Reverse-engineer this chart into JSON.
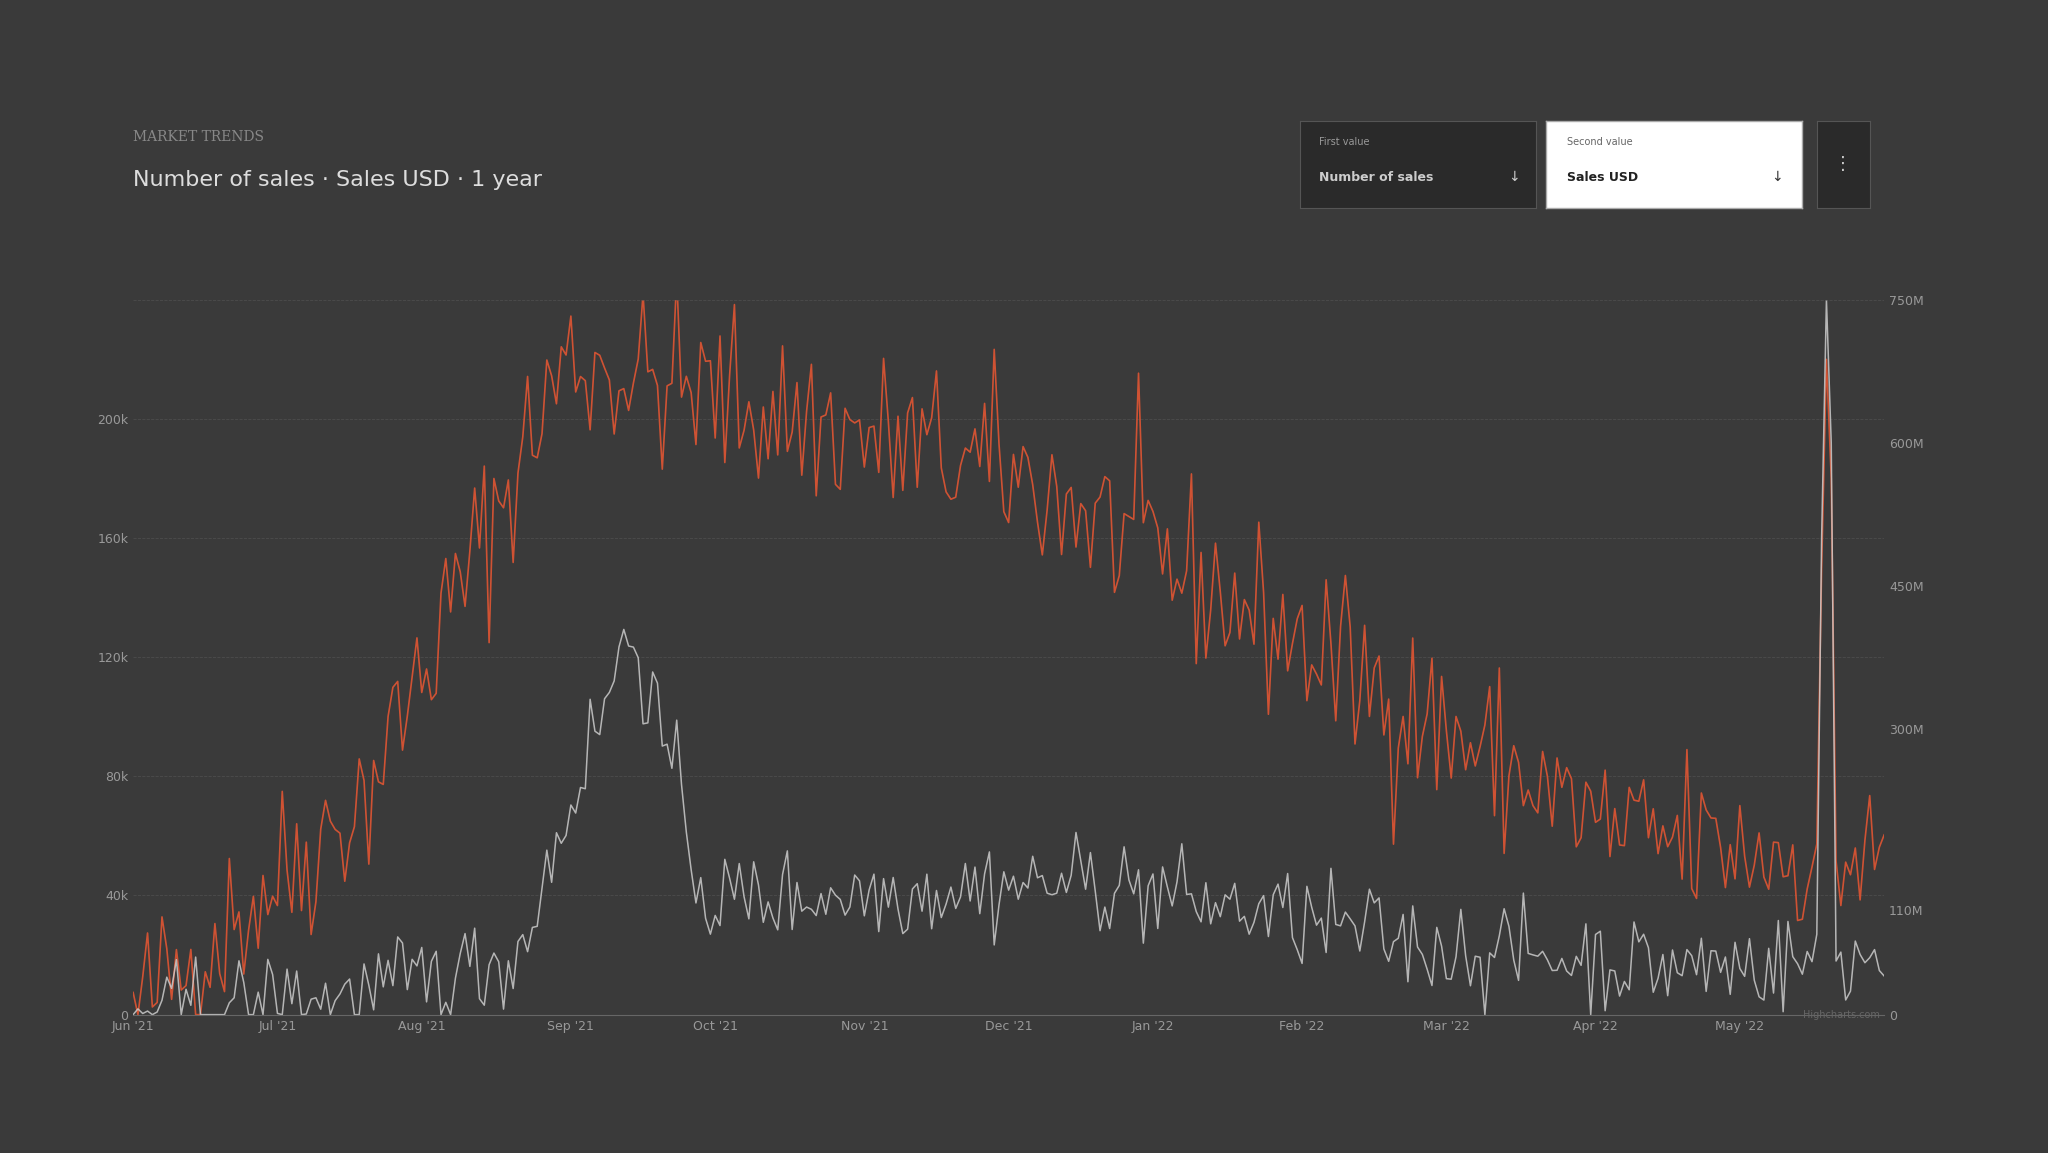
{
  "title_small": "MARKET TRENDS",
  "title_main": "Number of sales · Sales USD · 1 year",
  "bg_color": "#3a3a3a",
  "plot_bg_color": "#3a3a3a",
  "grid_color": "#555555",
  "red_color": "#e05533",
  "white_color": "#cccccc",
  "left_yticks": [
    0,
    40000,
    80000,
    120000,
    160000,
    200000
  ],
  "left_ytick_labels": [
    "0",
    "40k",
    "80k",
    "120k",
    "160k",
    "200k"
  ],
  "right_yticks": [
    0,
    110000000,
    300000000,
    450000000,
    600000000,
    750000000
  ],
  "right_ytick_labels": [
    "0",
    "110M",
    "300M",
    "450M",
    "600M",
    "750M"
  ],
  "xlabels": [
    "Jun '21",
    "Jul '21",
    "Aug '21",
    "Sep '21",
    "Oct '21",
    "Nov '21",
    "Dec '21",
    "Jan '22",
    "Feb '22",
    "Mar '22",
    "Apr '22",
    "May '22"
  ],
  "watermark": "Highcharts.com",
  "first_value_label": "First value",
  "first_value": "Number of sales",
  "second_value_label": "Second value",
  "second_value": "Sales USD"
}
